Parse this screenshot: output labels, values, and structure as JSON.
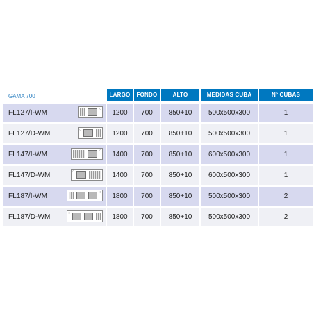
{
  "header": {
    "range_label": "GAMA 700",
    "columns": {
      "largo": "LARGO",
      "fondo": "FONDO",
      "alto": "ALTO",
      "medidas": "MEDIDAS CUBA",
      "cubas": "Nº CUBAS"
    }
  },
  "rows": [
    {
      "model": "FL127/I-WM",
      "largo": "1200",
      "fondo": "700",
      "alto": "850+10",
      "medidas": "500x500x300",
      "cubas": "1",
      "drainer_side": "left",
      "bowls": 1
    },
    {
      "model": "FL127/D-WM",
      "largo": "1200",
      "fondo": "700",
      "alto": "850+10",
      "medidas": "500x500x300",
      "cubas": "1",
      "drainer_side": "right",
      "bowls": 1
    },
    {
      "model": "FL147/I-WM",
      "largo": "1400",
      "fondo": "700",
      "alto": "850+10",
      "medidas": "600x500x300",
      "cubas": "1",
      "drainer_side": "left",
      "bowls": 1
    },
    {
      "model": "FL147/D-WM",
      "largo": "1400",
      "fondo": "700",
      "alto": "850+10",
      "medidas": "600x500x300",
      "cubas": "1",
      "drainer_side": "right",
      "bowls": 1
    },
    {
      "model": "FL187/I-WM",
      "largo": "1800",
      "fondo": "700",
      "alto": "850+10",
      "medidas": "500x500x300",
      "cubas": "2",
      "drainer_side": "left",
      "bowls": 2
    },
    {
      "model": "FL187/D-WM",
      "largo": "1800",
      "fondo": "700",
      "alto": "850+10",
      "medidas": "500x500x300",
      "cubas": "2",
      "drainer_side": "right",
      "bowls": 2
    }
  ],
  "colors": {
    "header_blue": "#0078c0",
    "row_shade": "#d7d9ef",
    "row_plain": "#eff0f5"
  }
}
